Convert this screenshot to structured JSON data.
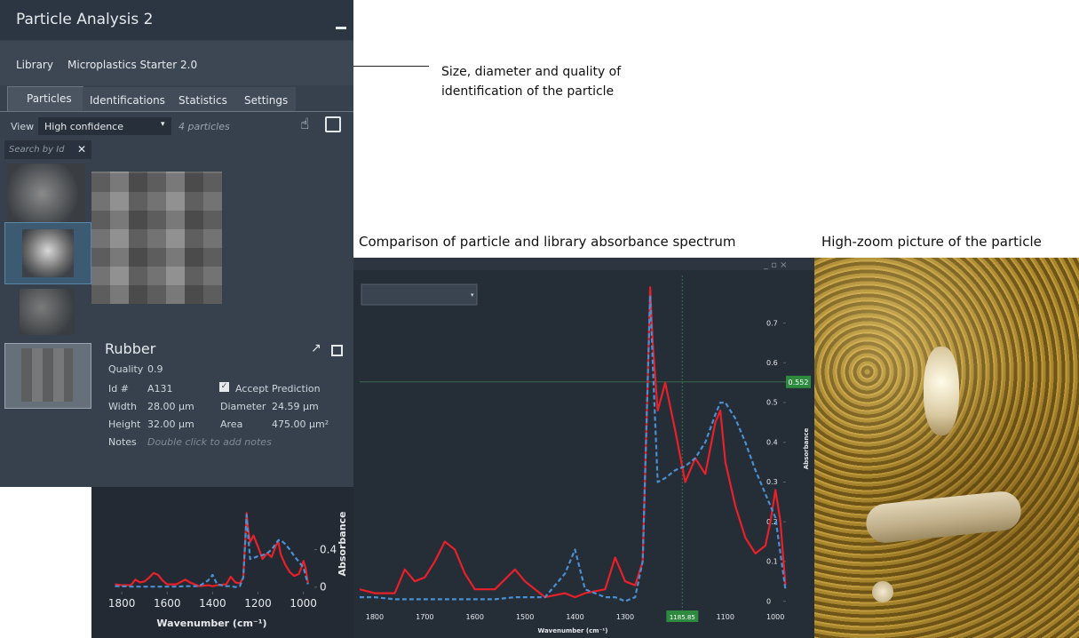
{
  "panel": {
    "title": "Particle Analysis 2",
    "library_label": "Library",
    "library_name": "Microplastics Starter 2.0",
    "tabs": [
      "Particles",
      "Identifications",
      "Statistics",
      "Settings"
    ],
    "view_label": "View",
    "view_value": "High confidence",
    "particle_count": "4 particles",
    "search_placeholder": "Search by Id"
  },
  "detail": {
    "name": "Rubber",
    "quality_label": "Quality",
    "quality": "0.9",
    "id_label": "Id #",
    "id": "A131",
    "accept": "Accept Prediction",
    "width_label": "Width",
    "width": "28.00 µm",
    "diameter_label": "Diameter",
    "diameter": "24.59 µm",
    "height_label": "Height",
    "height": "32.00 µm",
    "area_label": "Area",
    "area": "475.00 µm²",
    "notes_label": "Notes",
    "notes": "Double click to add notes"
  },
  "annotations": [
    "Size, diameter and quality of identification of the particle",
    "Comparison of particle and library absorbance spectrum",
    "High-zoom picture of the particle"
  ],
  "chart_data": [
    {
      "type": "line",
      "xlabel": "Wavenumber (cm⁻¹)",
      "ylabel": "Absorbance",
      "x": [
        1830,
        1800,
        1760,
        1740,
        1720,
        1700,
        1680,
        1660,
        1640,
        1620,
        1600,
        1560,
        1520,
        1500,
        1460,
        1420,
        1400,
        1380,
        1340,
        1320,
        1300,
        1280,
        1265,
        1255,
        1250,
        1245,
        1235,
        1220,
        1200,
        1180,
        1160,
        1140,
        1120,
        1110,
        1100,
        1080,
        1060,
        1040,
        1020,
        1010,
        1000,
        990,
        980
      ],
      "xlim": [
        1867,
        940
      ],
      "xticks": [
        1800,
        1600,
        1400,
        1200,
        1000
      ],
      "ylim": [
        -0.05,
        0.85
      ],
      "yticks": [
        0,
        0.4
      ],
      "series": [
        {
          "color": "#e8202a",
          "values": [
            0.03,
            0.02,
            0.02,
            0.08,
            0.05,
            0.06,
            0.1,
            0.15,
            0.13,
            0.07,
            0.03,
            0.03,
            0.08,
            0.05,
            0.01,
            0.02,
            0.01,
            0.02,
            0.03,
            0.11,
            0.05,
            0.04,
            0.1,
            0.55,
            0.79,
            0.65,
            0.48,
            0.55,
            0.43,
            0.3,
            0.36,
            0.32,
            0.45,
            0.48,
            0.35,
            0.24,
            0.16,
            0.12,
            0.14,
            0.2,
            0.28,
            0.2,
            0.04
          ]
        },
        {
          "color": "#4a90d0",
          "dashed": true,
          "values": [
            0.01,
            0.01,
            0.005,
            0.005,
            0.005,
            0.005,
            0.005,
            0.005,
            0.005,
            0.005,
            0.005,
            0.005,
            0.01,
            0.01,
            0.01,
            0.07,
            0.13,
            0.03,
            0.01,
            0.01,
            0.0,
            0.01,
            0.1,
            0.55,
            0.77,
            0.6,
            0.3,
            0.31,
            0.33,
            0.34,
            0.36,
            0.4,
            0.47,
            0.5,
            0.5,
            0.46,
            0.4,
            0.33,
            0.27,
            0.24,
            0.21,
            0.12,
            0.03
          ]
        }
      ]
    },
    {
      "type": "line",
      "xlabel": "Wavenumber (cm⁻¹)",
      "ylabel": "Absorbance",
      "x": [
        1830,
        1800,
        1760,
        1740,
        1720,
        1700,
        1680,
        1660,
        1640,
        1620,
        1600,
        1560,
        1520,
        1500,
        1460,
        1420,
        1400,
        1380,
        1340,
        1320,
        1300,
        1280,
        1265,
        1255,
        1250,
        1245,
        1235,
        1220,
        1200,
        1180,
        1160,
        1140,
        1120,
        1110,
        1100,
        1080,
        1060,
        1040,
        1020,
        1010,
        1000,
        990,
        980
      ],
      "xlim": [
        1830,
        979
      ],
      "xticks": [
        1800,
        1700,
        1600,
        1500,
        1400,
        1300,
        1200,
        1100,
        1000
      ],
      "ylim": [
        -0.03,
        0.82
      ],
      "yticks": [
        0,
        0.1,
        0.2,
        0.3,
        0.4,
        0.5,
        0.6,
        0.7
      ],
      "cursor_x": 1185.85,
      "cursor_y": 0.552,
      "series": [
        {
          "color": "#e8202a",
          "values": [
            0.03,
            0.02,
            0.02,
            0.08,
            0.05,
            0.06,
            0.1,
            0.15,
            0.13,
            0.07,
            0.03,
            0.03,
            0.08,
            0.05,
            0.01,
            0.02,
            0.01,
            0.02,
            0.03,
            0.11,
            0.05,
            0.04,
            0.1,
            0.55,
            0.79,
            0.65,
            0.48,
            0.55,
            0.43,
            0.3,
            0.36,
            0.32,
            0.45,
            0.48,
            0.35,
            0.24,
            0.16,
            0.12,
            0.14,
            0.2,
            0.28,
            0.2,
            0.04
          ]
        },
        {
          "color": "#4a90d0",
          "dashed": true,
          "values": [
            0.01,
            0.01,
            0.005,
            0.005,
            0.005,
            0.005,
            0.005,
            0.005,
            0.005,
            0.005,
            0.005,
            0.005,
            0.01,
            0.01,
            0.01,
            0.07,
            0.13,
            0.03,
            0.01,
            0.01,
            0.0,
            0.01,
            0.1,
            0.55,
            0.77,
            0.6,
            0.3,
            0.31,
            0.33,
            0.34,
            0.36,
            0.4,
            0.47,
            0.5,
            0.5,
            0.46,
            0.4,
            0.33,
            0.27,
            0.24,
            0.21,
            0.12,
            0.03
          ]
        }
      ]
    }
  ]
}
